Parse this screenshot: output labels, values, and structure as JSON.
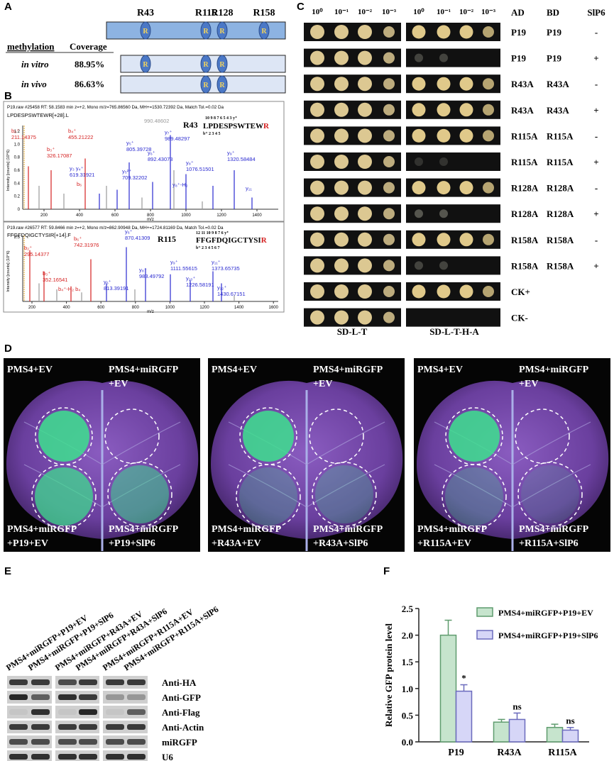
{
  "panel_labels": [
    "A",
    "B",
    "C",
    "D",
    "E",
    "F"
  ],
  "panel_a": {
    "residues": [
      "R43",
      "R115",
      "R128",
      "R158"
    ],
    "oval_label": "R",
    "header": [
      "methylation",
      "Coverage"
    ],
    "rows": [
      {
        "method": "in vitro",
        "coverage": "88.95%"
      },
      {
        "method": "in vivo",
        "coverage": "86.63%"
      }
    ]
  },
  "panel_b": {
    "spectra": [
      {
        "header": "P19.raw #25458  RT: 58.1583 min z=+2, Mono m/z=765.86560 Da, MH+=1530.72392 Da, Match Tol.=0.02 Da",
        "sequence": "LPDESPSWTEWR[+28].L",
        "site": "R43",
        "peptide": "LPDESPSWTEW",
        "site_residue": "R",
        "ladder_y": "10 9  8 7 6  5 4  3   y⁺",
        "ladder_b": "b⁺ 2  3 4 5",
        "y_axis_label": "Intensity [counts] (10^6)",
        "yticks": [
          "1.2",
          "1.0",
          "0.8",
          "0.6",
          "0.4",
          "0.2",
          "0"
        ],
        "xticks": [
          "200",
          "400",
          "600",
          "800",
          "1000",
          "1200",
          "1400"
        ],
        "x_axis_label": "m/z",
        "ions": [
          {
            "ion": "b₂⁺",
            "mz": "211.14375"
          },
          {
            "ion": "b₄⁺",
            "mz": "455.21222"
          },
          {
            "ion": "b₃⁺",
            "mz": "326.17087"
          },
          {
            "mz": "990.48602"
          },
          {
            "ion": "y₇⁺",
            "mz": "989.48297"
          },
          {
            "ion": "y₅⁺",
            "mz": "805.39728"
          },
          {
            "ion": "y₆⁺",
            "mz": "892.43073"
          },
          {
            "ion": "y₈⁺",
            "mz": "1076.51501"
          },
          {
            "ion": "y₉⁺",
            "mz": "1320.58484"
          },
          {
            "ion": "y₃ y₄⁺",
            "mz": "619.31921"
          },
          {
            "ion": "y₅²⁺",
            "mz": "709.32202"
          },
          {
            "ion": "y₈⁺-H₂"
          },
          {
            "ion": "b₆"
          },
          {
            "ion": "y₁₁"
          }
        ]
      },
      {
        "header": "P19.raw #26577  RT: 59.8466 min z=+2, Mono m/z=862.90948 Da, MH+=1724.81169 Da, Match Tol.=0.02 Da",
        "sequence": "FFGFDQIGCTYSIR[+14].F",
        "site": "R115",
        "peptide": "FFGFDQIGCTYSI",
        "site_residue": "R",
        "ladder_y": "12 11 10 9 8 7   6    y⁺",
        "ladder_b": "b⁺ 2 3  4 5 6 7",
        "y_axis_label": "Intensity [counts] (10^6)",
        "yticks": [
          "2.5"
        ],
        "xticks": [
          "200",
          "400",
          "600",
          "800",
          "1000",
          "1200",
          "1400",
          "1600"
        ],
        "x_axis_label": "m/z",
        "ions": [
          {
            "ion": "b₂⁺",
            "mz": "295.14377"
          },
          {
            "ion": "b₆⁺",
            "mz": "742.31976"
          },
          {
            "ion": "y₆⁺",
            "mz": "870.41309"
          },
          {
            "ion": "b₃⁺",
            "mz": "352.16541"
          },
          {
            "ion": "y₈⁺",
            "mz": "983.49792"
          },
          {
            "ion": "y₉⁺",
            "mz": "1111.55615"
          },
          {
            "ion": "y₁₁⁺",
            "mz": "1373.65735"
          },
          {
            "ion": "y₁₀⁺",
            "mz": "1226.58191"
          },
          {
            "ion": "y₁₂⁺",
            "mz": "1430.67151"
          },
          {
            "ion": "y₅⁺",
            "mz": "813.39191"
          },
          {
            "ion": "b₄⁺-H₂  b₄"
          }
        ]
      }
    ]
  },
  "panel_c": {
    "dilutions": [
      "10⁰",
      "10⁻¹",
      "10⁻²",
      "10⁻³"
    ],
    "columns": [
      "AD",
      "BD",
      "SlP6"
    ],
    "rows": [
      [
        "P19",
        "P19",
        "-"
      ],
      [
        "P19",
        "P19",
        "+"
      ],
      [
        "R43A",
        "R43A",
        "-"
      ],
      [
        "R43A",
        "R43A",
        "+"
      ],
      [
        "R115A",
        "R115A",
        "-"
      ],
      [
        "R115A",
        "R115A",
        "+"
      ],
      [
        "R128A",
        "R128A",
        "-"
      ],
      [
        "R128A",
        "R128A",
        "+"
      ],
      [
        "R158A",
        "R158A",
        "-"
      ],
      [
        "R158A",
        "R158A",
        "+"
      ],
      [
        "CK+"
      ],
      [
        "CK-"
      ]
    ],
    "media": [
      "SD-L-T",
      "SD-L-T-H-A"
    ]
  },
  "panel_d": {
    "images": [
      {
        "top_left": "PMS4+EV",
        "top_right": [
          "PMS4+miRGFP",
          "+EV"
        ],
        "bottom_left": [
          "PMS4+miRGFP",
          "+P19+EV"
        ],
        "bottom_right": [
          "PMS4+miRGFP",
          "+P19+SlP6"
        ]
      },
      {
        "top_left": "PMS4+EV",
        "top_right": [
          "PMS4+miRGFP",
          "+EV"
        ],
        "bottom_left": [
          "PMS4+miRGFP",
          "+R43A+EV"
        ],
        "bottom_right": [
          "PMS4+miRGFP",
          "+R43A+SlP6"
        ]
      },
      {
        "top_left": "PMS4+EV",
        "top_right": [
          "PMS4+miRGFP",
          "+EV"
        ],
        "bottom_left": [
          "PMS4+miRGFP",
          "+R115A+EV"
        ],
        "bottom_right": [
          "PMS4+miRGFP",
          "+R115A+SlP6"
        ]
      }
    ]
  },
  "panel_e": {
    "lanes": [
      "PMS4+miRGFP+P19+EV",
      "PMS4+miRGFP+P19+SlP6",
      "PMS4+miRGFP+R43A+EV",
      "PMS4+miRGFP+R43A+SlP6",
      "PMS4+miRGFP+R115A+EV",
      "PMS4+miRGFP+R115A+SlP6"
    ],
    "blots": [
      "Anti-HA",
      "Anti-GFP",
      "Anti-Flag",
      "Anti-Actin",
      "miRGFP",
      "U6"
    ]
  },
  "chart_data": {
    "type": "bar",
    "y_axis_label": "Relative GFP protein level",
    "categories": [
      "P19",
      "R43A",
      "R115A"
    ],
    "series": [
      {
        "name": "PMS4+miRGFP+P19+EV",
        "color": "#c6e4cd",
        "edge_color": "#5f9c6e",
        "values": [
          2.0,
          0.37,
          0.27
        ],
        "errors": [
          0.28,
          0.05,
          0.06
        ]
      },
      {
        "name": "PMS4+miRGFP+P19+SlP6",
        "color": "#d6d6f7",
        "edge_color": "#6b6bbd",
        "values": [
          0.95,
          0.42,
          0.22
        ],
        "errors": [
          0.12,
          0.12,
          0.05
        ]
      }
    ],
    "significance": [
      "*",
      "ns",
      "ns"
    ],
    "ylim": [
      0,
      2.5
    ],
    "yticks": [
      {
        "value": 0,
        "label": "0.0"
      },
      0.5,
      {
        "value": 1,
        "label": "1.0"
      },
      1.5,
      {
        "value": 2,
        "label": "2.0"
      },
      2.5
    ],
    "legend": "upper right"
  }
}
